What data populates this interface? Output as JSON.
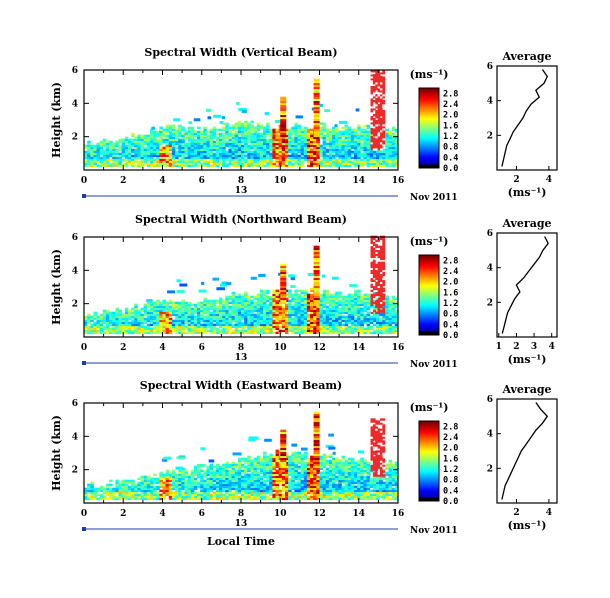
{
  "chart_data": [
    {
      "type": "heatmap",
      "title": "Spectral Width (Vertical Beam)",
      "xlabel": "",
      "ylabel": "Height (km)",
      "xlim": [
        0,
        16
      ],
      "ylim": [
        0,
        6
      ],
      "xticks": [
        "0",
        "2",
        "4",
        "6",
        "8",
        "10",
        "12",
        "14",
        "16"
      ],
      "yticks": [
        "2",
        "4",
        "6"
      ],
      "date_marker": "13",
      "date_label": "Nov 2011",
      "colorbar": {
        "unit": "(ms⁻¹)",
        "labels": [
          "0.0",
          "0.4",
          "0.8",
          "1.2",
          "1.6",
          "2.0",
          "2.4",
          "2.8"
        ],
        "range": [
          0,
          3.0
        ]
      },
      "layer": [
        {
          "x": 0.0,
          "top": 1.5
        },
        {
          "x": 1.0,
          "top": 1.6
        },
        {
          "x": 2.0,
          "top": 1.9
        },
        {
          "x": 3.0,
          "top": 2.1
        },
        {
          "x": 4.0,
          "top": 2.6
        },
        {
          "x": 5.0,
          "top": 2.4
        },
        {
          "x": 6.0,
          "top": 2.5
        },
        {
          "x": 7.0,
          "top": 2.6
        },
        {
          "x": 8.0,
          "top": 2.8
        },
        {
          "x": 9.0,
          "top": 2.7
        },
        {
          "x": 10.0,
          "top": 2.6
        },
        {
          "x": 11.0,
          "top": 2.5
        },
        {
          "x": 12.0,
          "top": 2.6
        },
        {
          "x": 13.0,
          "top": 2.4
        },
        {
          "x": 14.0,
          "top": 2.6
        },
        {
          "x": 15.0,
          "top": 2.5
        },
        {
          "x": 16.0,
          "top": 2.4
        }
      ],
      "red_column": {
        "x0": 14.6,
        "x1": 15.2,
        "ymin": 1.2,
        "ymax": 6.0
      },
      "average": {
        "title": "Average",
        "xlabel": "(ms⁻¹)",
        "xlim": [
          0.8,
          4.5
        ],
        "xticks": [
          "2",
          "4"
        ],
        "yticks": [
          "2",
          "4",
          "6"
        ],
        "height": [
          0.2,
          0.6,
          1.0,
          1.4,
          1.8,
          2.2,
          2.6,
          3.0,
          3.4,
          3.8,
          4.2,
          4.6,
          5.0,
          5.4,
          5.8
        ],
        "value": [
          1.1,
          1.2,
          1.3,
          1.4,
          1.6,
          1.8,
          2.1,
          2.4,
          2.6,
          2.9,
          3.4,
          3.2,
          3.7,
          3.9,
          3.6
        ]
      }
    },
    {
      "type": "heatmap",
      "title": "Spectral Width (Northward Beam)",
      "xlabel": "",
      "ylabel": "Height (km)",
      "xlim": [
        0,
        16
      ],
      "ylim": [
        0,
        6
      ],
      "xticks": [
        "0",
        "2",
        "4",
        "6",
        "8",
        "10",
        "12",
        "14",
        "16"
      ],
      "yticks": [
        "2",
        "4",
        "6"
      ],
      "date_marker": "13",
      "date_label": "Nov 2011",
      "colorbar": {
        "unit": "(ms⁻¹)",
        "labels": [
          "0.0",
          "0.4",
          "0.8",
          "1.2",
          "1.6",
          "2.0",
          "2.4",
          "2.8"
        ],
        "range": [
          0,
          3.0
        ]
      },
      "layer": [
        {
          "x": 0.0,
          "top": 1.3
        },
        {
          "x": 1.0,
          "top": 1.4
        },
        {
          "x": 2.0,
          "top": 1.6
        },
        {
          "x": 3.0,
          "top": 1.9
        },
        {
          "x": 4.0,
          "top": 2.2
        },
        {
          "x": 5.0,
          "top": 2.1
        },
        {
          "x": 6.0,
          "top": 2.2
        },
        {
          "x": 7.0,
          "top": 2.4
        },
        {
          "x": 8.0,
          "top": 2.5
        },
        {
          "x": 9.0,
          "top": 2.6
        },
        {
          "x": 10.0,
          "top": 2.7
        },
        {
          "x": 11.0,
          "top": 2.6
        },
        {
          "x": 12.0,
          "top": 2.7
        },
        {
          "x": 13.0,
          "top": 2.5
        },
        {
          "x": 14.0,
          "top": 2.6
        },
        {
          "x": 15.0,
          "top": 2.4
        },
        {
          "x": 16.0,
          "top": 2.3
        }
      ],
      "red_column": {
        "x0": 14.6,
        "x1": 15.2,
        "ymin": 1.4,
        "ymax": 6.0
      },
      "average": {
        "title": "Average",
        "xlabel": "(ms⁻¹)",
        "xlim": [
          0.9,
          4.3
        ],
        "xticks": [
          "1",
          "2",
          "3",
          "4"
        ],
        "yticks": [
          "2",
          "4",
          "6"
        ],
        "height": [
          0.2,
          0.6,
          1.0,
          1.4,
          1.8,
          2.2,
          2.6,
          3.0,
          3.4,
          3.8,
          4.2,
          4.6,
          5.0,
          5.4,
          5.8
        ],
        "value": [
          1.2,
          1.3,
          1.4,
          1.5,
          1.7,
          1.9,
          2.2,
          2.0,
          2.4,
          2.7,
          3.0,
          3.3,
          3.5,
          3.8,
          3.6
        ]
      }
    },
    {
      "type": "heatmap",
      "title": "Spectral Width (Eastward Beam)",
      "xlabel": "Local Time",
      "ylabel": "Height (km)",
      "xlim": [
        0,
        16
      ],
      "ylim": [
        0,
        6
      ],
      "xticks": [
        "0",
        "2",
        "4",
        "6",
        "8",
        "10",
        "12",
        "14",
        "16"
      ],
      "yticks": [
        "2",
        "4",
        "6"
      ],
      "date_marker": "13",
      "date_label": "Nov 2011",
      "colorbar": {
        "unit": "(ms⁻¹)",
        "labels": [
          "0.0",
          "0.4",
          "0.8",
          "1.2",
          "1.6",
          "2.0",
          "2.4",
          "2.8"
        ],
        "range": [
          0,
          3.0
        ]
      },
      "layer": [
        {
          "x": 0.0,
          "top": 1.0
        },
        {
          "x": 1.0,
          "top": 1.1
        },
        {
          "x": 2.0,
          "top": 1.3
        },
        {
          "x": 3.0,
          "top": 1.4
        },
        {
          "x": 4.0,
          "top": 1.8
        },
        {
          "x": 5.0,
          "top": 2.0
        },
        {
          "x": 6.0,
          "top": 2.1
        },
        {
          "x": 7.0,
          "top": 2.4
        },
        {
          "x": 8.0,
          "top": 2.6
        },
        {
          "x": 9.0,
          "top": 2.8
        },
        {
          "x": 10.0,
          "top": 3.0
        },
        {
          "x": 11.0,
          "top": 2.8
        },
        {
          "x": 12.0,
          "top": 2.9
        },
        {
          "x": 13.0,
          "top": 2.6
        },
        {
          "x": 14.0,
          "top": 2.5
        },
        {
          "x": 15.0,
          "top": 2.4
        },
        {
          "x": 16.0,
          "top": 2.3
        }
      ],
      "red_column": {
        "x0": 14.6,
        "x1": 15.2,
        "ymin": 1.6,
        "ymax": 5.0
      },
      "average": {
        "title": "Average",
        "xlabel": "(ms⁻¹)",
        "xlim": [
          0.8,
          4.5
        ],
        "xticks": [
          "2",
          "4"
        ],
        "yticks": [
          "2",
          "4",
          "6"
        ],
        "height": [
          0.2,
          0.6,
          1.0,
          1.4,
          1.8,
          2.2,
          2.6,
          3.0,
          3.4,
          3.8,
          4.2,
          4.6,
          5.0,
          5.4,
          5.8
        ],
        "value": [
          1.1,
          1.2,
          1.3,
          1.5,
          1.7,
          1.9,
          2.1,
          2.3,
          2.6,
          2.9,
          3.2,
          3.6,
          3.9,
          3.5,
          3.2
        ]
      }
    }
  ]
}
